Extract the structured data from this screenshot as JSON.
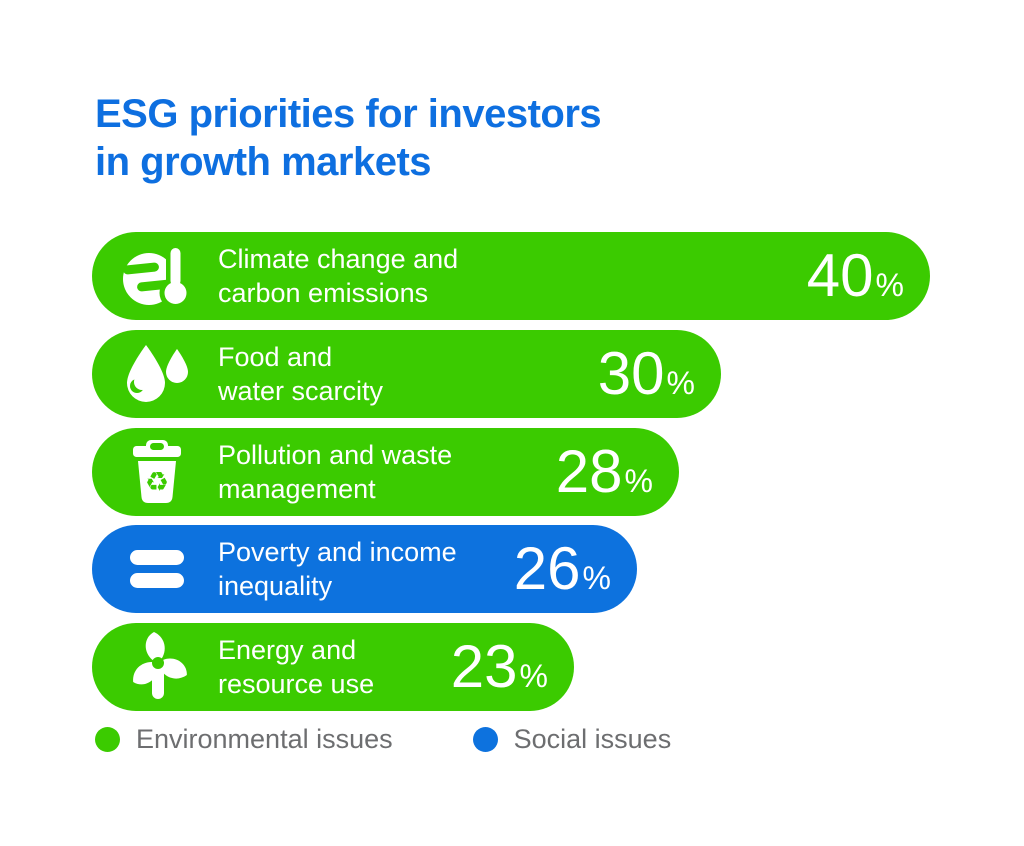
{
  "title": {
    "line1": "ESG priorities for investors",
    "line2": "in growth markets",
    "color": "#0e6fe0"
  },
  "colors": {
    "environmental": "#3bcb00",
    "social": "#0d72de",
    "legend_text": "#6d6e70",
    "background": "#ffffff"
  },
  "chart_data": {
    "type": "bar",
    "orientation": "horizontal",
    "title": "ESG priorities for investors in growth markets",
    "value_unit": "%",
    "xlim": [
      0,
      44
    ],
    "grid": false,
    "legend_position": "bottom",
    "categories": [
      "Climate change and carbon emissions",
      "Food and water scarcity",
      "Pollution and waste management",
      "Poverty and income inequality",
      "Energy and resource use"
    ],
    "values": [
      40,
      30,
      28,
      26,
      23
    ],
    "groups": [
      "environmental",
      "environmental",
      "environmental",
      "social",
      "environmental"
    ],
    "legend": [
      {
        "label": "Environmental issues",
        "color": "#3bcb00"
      },
      {
        "label": "Social issues",
        "color": "#0d72de"
      }
    ]
  },
  "bars": [
    {
      "icon": "climate-globe-thermometer-icon",
      "label_line1": "Climate change and",
      "label_line2": "carbon emissions",
      "value": 40,
      "unit": "%",
      "group": "environmental",
      "color": "#3bcb00"
    },
    {
      "icon": "water-drops-icon",
      "label_line1": "Food and",
      "label_line2": "water scarcity",
      "value": 30,
      "unit": "%",
      "group": "environmental",
      "color": "#3bcb00"
    },
    {
      "icon": "recycle-bin-icon",
      "label_line1": "Pollution and waste",
      "label_line2": "management",
      "value": 28,
      "unit": "%",
      "group": "environmental",
      "color": "#3bcb00"
    },
    {
      "icon": "equality-icon",
      "label_line1": "Poverty and income",
      "label_line2": "inequality",
      "value": 26,
      "unit": "%",
      "group": "social",
      "color": "#0d72de"
    },
    {
      "icon": "pinwheel-icon",
      "label_line1": "Energy and",
      "label_line2": "resource use",
      "value": 23,
      "unit": "%",
      "group": "environmental",
      "color": "#3bcb00"
    }
  ],
  "legend": {
    "items": [
      {
        "label": "Environmental issues",
        "color": "#3bcb00"
      },
      {
        "label": "Social issues",
        "color": "#0d72de"
      }
    ]
  }
}
